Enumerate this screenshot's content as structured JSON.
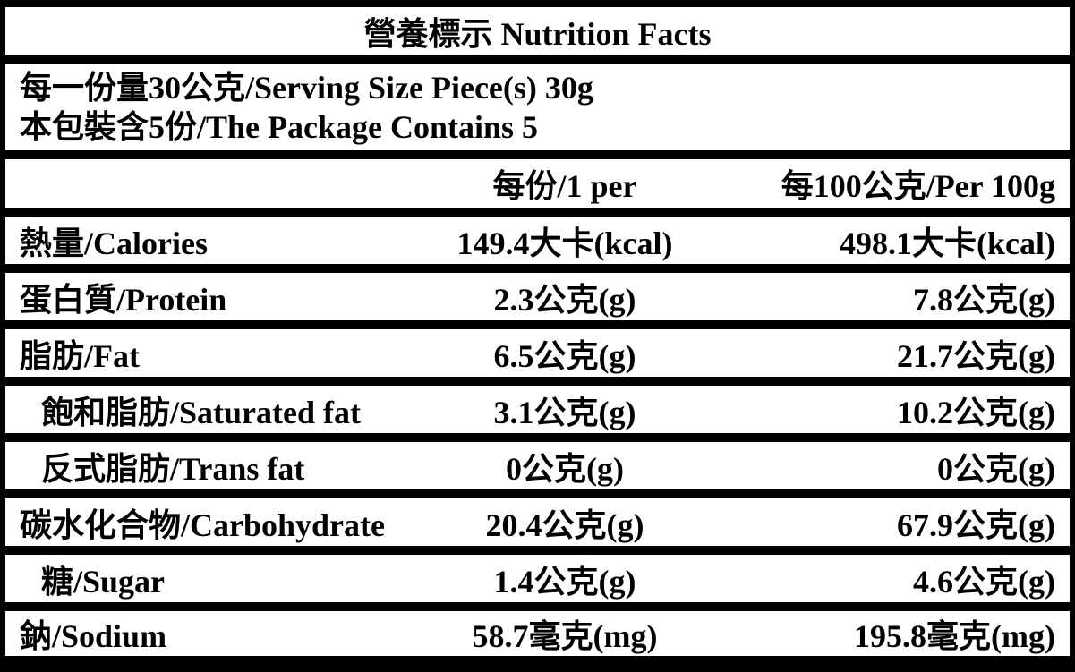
{
  "table": {
    "title": "營養標示 Nutrition Facts",
    "serving_info": {
      "line1": "每一份量30公克/Serving Size Piece(s) 30g",
      "line2": "本包裝含5份/The Package Contains 5"
    },
    "columns": {
      "per_serving": "每份/1 per",
      "per_100g": "每100公克/Per 100g"
    },
    "rows": [
      {
        "name": "calories",
        "label": "熱量/Calories",
        "per_serving": "149.4大卡(kcal)",
        "per_100g": "498.1大卡(kcal)",
        "indent": false
      },
      {
        "name": "protein",
        "label": "蛋白質/Protein",
        "per_serving": "2.3公克(g)",
        "per_100g": "7.8公克(g)",
        "indent": false
      },
      {
        "name": "fat",
        "label": "脂肪/Fat",
        "per_serving": "6.5公克(g)",
        "per_100g": "21.7公克(g)",
        "indent": false
      },
      {
        "name": "saturated-fat",
        "label": "飽和脂肪/Saturated fat",
        "per_serving": "3.1公克(g)",
        "per_100g": "10.2公克(g)",
        "indent": true
      },
      {
        "name": "trans-fat",
        "label": "反式脂肪/Trans fat",
        "per_serving": "0公克(g)",
        "per_100g": "0公克(g)",
        "indent": true
      },
      {
        "name": "carbohydrate",
        "label": "碳水化合物/Carbohydrate",
        "per_serving": "20.4公克(g)",
        "per_100g": "67.9公克(g)",
        "indent": false
      },
      {
        "name": "sugar",
        "label": "糖/Sugar",
        "per_serving": "1.4公克(g)",
        "per_100g": "4.6公克(g)",
        "indent": true
      },
      {
        "name": "sodium",
        "label": "鈉/Sodium",
        "per_serving": "58.7毫克(mg)",
        "per_100g": "195.8毫克(mg)",
        "indent": false
      }
    ],
    "colors": {
      "border": "#000000",
      "row_background": "#ffffff",
      "text": "#000000"
    }
  }
}
